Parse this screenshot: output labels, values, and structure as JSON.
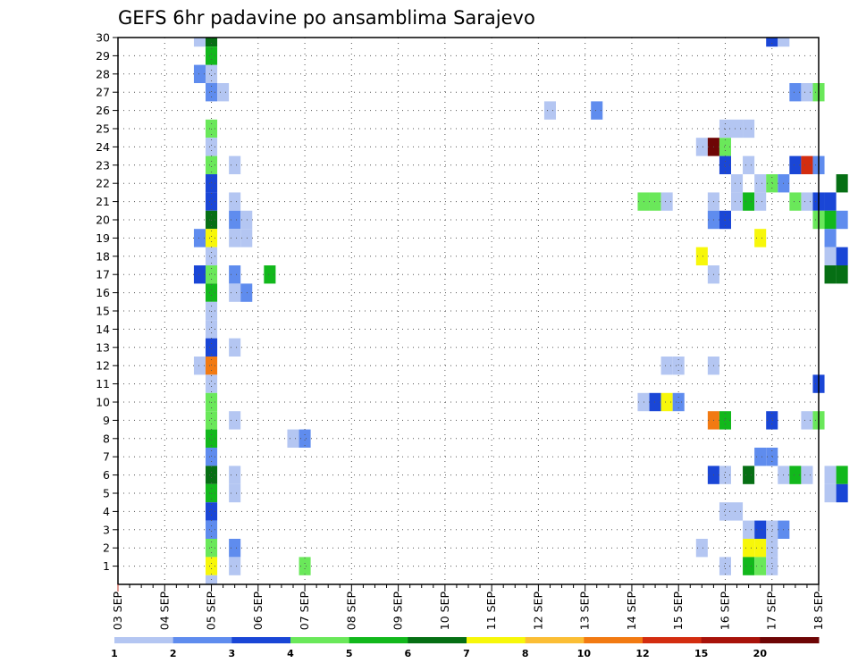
{
  "chart_data": {
    "type": "heatmap",
    "title": "GEFS 6hr padavine po ansamblima Sarajevo",
    "xlabel": "",
    "ylabel": "",
    "grid": true,
    "x_tick_labels": [
      "03 SEP",
      "04 SEP",
      "05 SEP",
      "06 SEP",
      "07 SEP",
      "08 SEP",
      "09 SEP",
      "10 SEP",
      "11 SEP",
      "12 SEP",
      "13 SEP",
      "14 SEP",
      "15 SEP",
      "16 SEP",
      "17 SEP",
      "18 SEP"
    ],
    "y_tick_labels": [
      "1",
      "2",
      "3",
      "4",
      "5",
      "6",
      "7",
      "8",
      "9",
      "10",
      "11",
      "12",
      "13",
      "14",
      "15",
      "16",
      "17",
      "18",
      "19",
      "20",
      "21",
      "22",
      "23",
      "24",
      "25",
      "26",
      "27",
      "28",
      "29",
      "30"
    ],
    "x_range_steps": [
      0,
      60
    ],
    "y_range": [
      0,
      30
    ],
    "colorbar": {
      "labels": [
        "1",
        "2",
        "3",
        "4",
        "5",
        "6",
        "7",
        "8",
        "10",
        "12",
        "15",
        "20"
      ],
      "colors": [
        "#b4c6f2",
        "#5f8cee",
        "#1a46d6",
        "#6ae85a",
        "#12b81c",
        "#066f14",
        "#f7f70a",
        "#fbbe35",
        "#f27a12",
        "#d32d10",
        "#a8120a",
        "#6e0505"
      ]
    },
    "cells_note_units": "x = 6-hour step index from 03 SEP 00Z (4 steps per day), y = ensemble member, c = colorbar class index (0 = 1mm ... 11 = 20mm)",
    "cells": [
      [
        7,
        30,
        0
      ],
      [
        8,
        30,
        5
      ],
      [
        7,
        28,
        1
      ],
      [
        8,
        28,
        0
      ],
      [
        8,
        29,
        4
      ],
      [
        8,
        27,
        1
      ],
      [
        9,
        27,
        0
      ],
      [
        8,
        25,
        3
      ],
      [
        8,
        24,
        0
      ],
      [
        8,
        23,
        3
      ],
      [
        8,
        22,
        2
      ],
      [
        8,
        21,
        2
      ],
      [
        8,
        20,
        5
      ],
      [
        8,
        19,
        6
      ],
      [
        7,
        19,
        1
      ],
      [
        8,
        18,
        0
      ],
      [
        8,
        17,
        3
      ],
      [
        7,
        17,
        2
      ],
      [
        8,
        16,
        4
      ],
      [
        8,
        15,
        0
      ],
      [
        8,
        14,
        0
      ],
      [
        8,
        13,
        2
      ],
      [
        8,
        12,
        8
      ],
      [
        7,
        12,
        0
      ],
      [
        8,
        11,
        0
      ],
      [
        8,
        10,
        3
      ],
      [
        8,
        9,
        3
      ],
      [
        8,
        8,
        4
      ],
      [
        8,
        7,
        1
      ],
      [
        8,
        6,
        5
      ],
      [
        8,
        5,
        4
      ],
      [
        8,
        4,
        2
      ],
      [
        8,
        3,
        1
      ],
      [
        8,
        2,
        3
      ],
      [
        8,
        1,
        6
      ],
      [
        8,
        0,
        0
      ],
      [
        10,
        23,
        0
      ],
      [
        10,
        21,
        0
      ],
      [
        10,
        20,
        1
      ],
      [
        11,
        20,
        0
      ],
      [
        10,
        19,
        0
      ],
      [
        11,
        19,
        0
      ],
      [
        10,
        17,
        1
      ],
      [
        10,
        16,
        0
      ],
      [
        11,
        16,
        1
      ],
      [
        10,
        13,
        0
      ],
      [
        10,
        9,
        0
      ],
      [
        10,
        6,
        0
      ],
      [
        10,
        5,
        0
      ],
      [
        10,
        2,
        1
      ],
      [
        10,
        1,
        0
      ],
      [
        13,
        17,
        4
      ],
      [
        15,
        8,
        0
      ],
      [
        16,
        8,
        1
      ],
      [
        16,
        1,
        3
      ],
      [
        37,
        26,
        0
      ],
      [
        41,
        26,
        1
      ],
      [
        45,
        21,
        3
      ],
      [
        46,
        21,
        3
      ],
      [
        47,
        21,
        0
      ],
      [
        45,
        10,
        0
      ],
      [
        46,
        10,
        2
      ],
      [
        47,
        10,
        6
      ],
      [
        48,
        10,
        1
      ],
      [
        47,
        12,
        0
      ],
      [
        48,
        12,
        0
      ],
      [
        50,
        24,
        0
      ],
      [
        51,
        24,
        11
      ],
      [
        52,
        24,
        3
      ],
      [
        52,
        23,
        2
      ],
      [
        50,
        18,
        6
      ],
      [
        51,
        21,
        0
      ],
      [
        51,
        20,
        1
      ],
      [
        52,
        20,
        2
      ],
      [
        51,
        17,
        0
      ],
      [
        51,
        12,
        0
      ],
      [
        51,
        9,
        8
      ],
      [
        52,
        9,
        4
      ],
      [
        51,
        6,
        2
      ],
      [
        52,
        6,
        0
      ],
      [
        52,
        4,
        0
      ],
      [
        53,
        4,
        0
      ],
      [
        52,
        1,
        0
      ],
      [
        50,
        2,
        0
      ],
      [
        53,
        25,
        0
      ],
      [
        54,
        25,
        0
      ],
      [
        52,
        25,
        0
      ],
      [
        53,
        22,
        0
      ],
      [
        53,
        21,
        0
      ],
      [
        54,
        21,
        4
      ],
      [
        54,
        23,
        0
      ],
      [
        55,
        21,
        0
      ],
      [
        55,
        22,
        0
      ],
      [
        56,
        22,
        3
      ],
      [
        57,
        22,
        1
      ],
      [
        55,
        19,
        6
      ],
      [
        54,
        2,
        6
      ],
      [
        55,
        2,
        6
      ],
      [
        54,
        1,
        4
      ],
      [
        55,
        1,
        3
      ],
      [
        56,
        1,
        0
      ],
      [
        56,
        2,
        0
      ],
      [
        56,
        3,
        0
      ],
      [
        55,
        3,
        2
      ],
      [
        54,
        3,
        0
      ],
      [
        56,
        7,
        1
      ],
      [
        55,
        7,
        1
      ],
      [
        54,
        6,
        5
      ],
      [
        56,
        9,
        2
      ],
      [
        57,
        3,
        1
      ],
      [
        56,
        30,
        2
      ],
      [
        57,
        30,
        0
      ],
      [
        58,
        27,
        1
      ],
      [
        59,
        27,
        0
      ],
      [
        60,
        27,
        3
      ],
      [
        58,
        23,
        2
      ],
      [
        59,
        23,
        9
      ],
      [
        60,
        23,
        1
      ],
      [
        59,
        21,
        0
      ],
      [
        58,
        21,
        3
      ],
      [
        60,
        21,
        2
      ],
      [
        61,
        21,
        2
      ],
      [
        61,
        20,
        4
      ],
      [
        62,
        22,
        5
      ],
      [
        60,
        20,
        3
      ],
      [
        61,
        19,
        1
      ],
      [
        62,
        20,
        1
      ],
      [
        61,
        18,
        0
      ],
      [
        62,
        18,
        2
      ],
      [
        62,
        17,
        5
      ],
      [
        61,
        17,
        5
      ],
      [
        60,
        11,
        2
      ],
      [
        59,
        9,
        0
      ],
      [
        60,
        9,
        3
      ],
      [
        57,
        6,
        0
      ],
      [
        58,
        6,
        4
      ],
      [
        59,
        6,
        0
      ],
      [
        61,
        6,
        0
      ],
      [
        62,
        6,
        4
      ],
      [
        61,
        5,
        0
      ],
      [
        62,
        5,
        2
      ]
    ]
  }
}
